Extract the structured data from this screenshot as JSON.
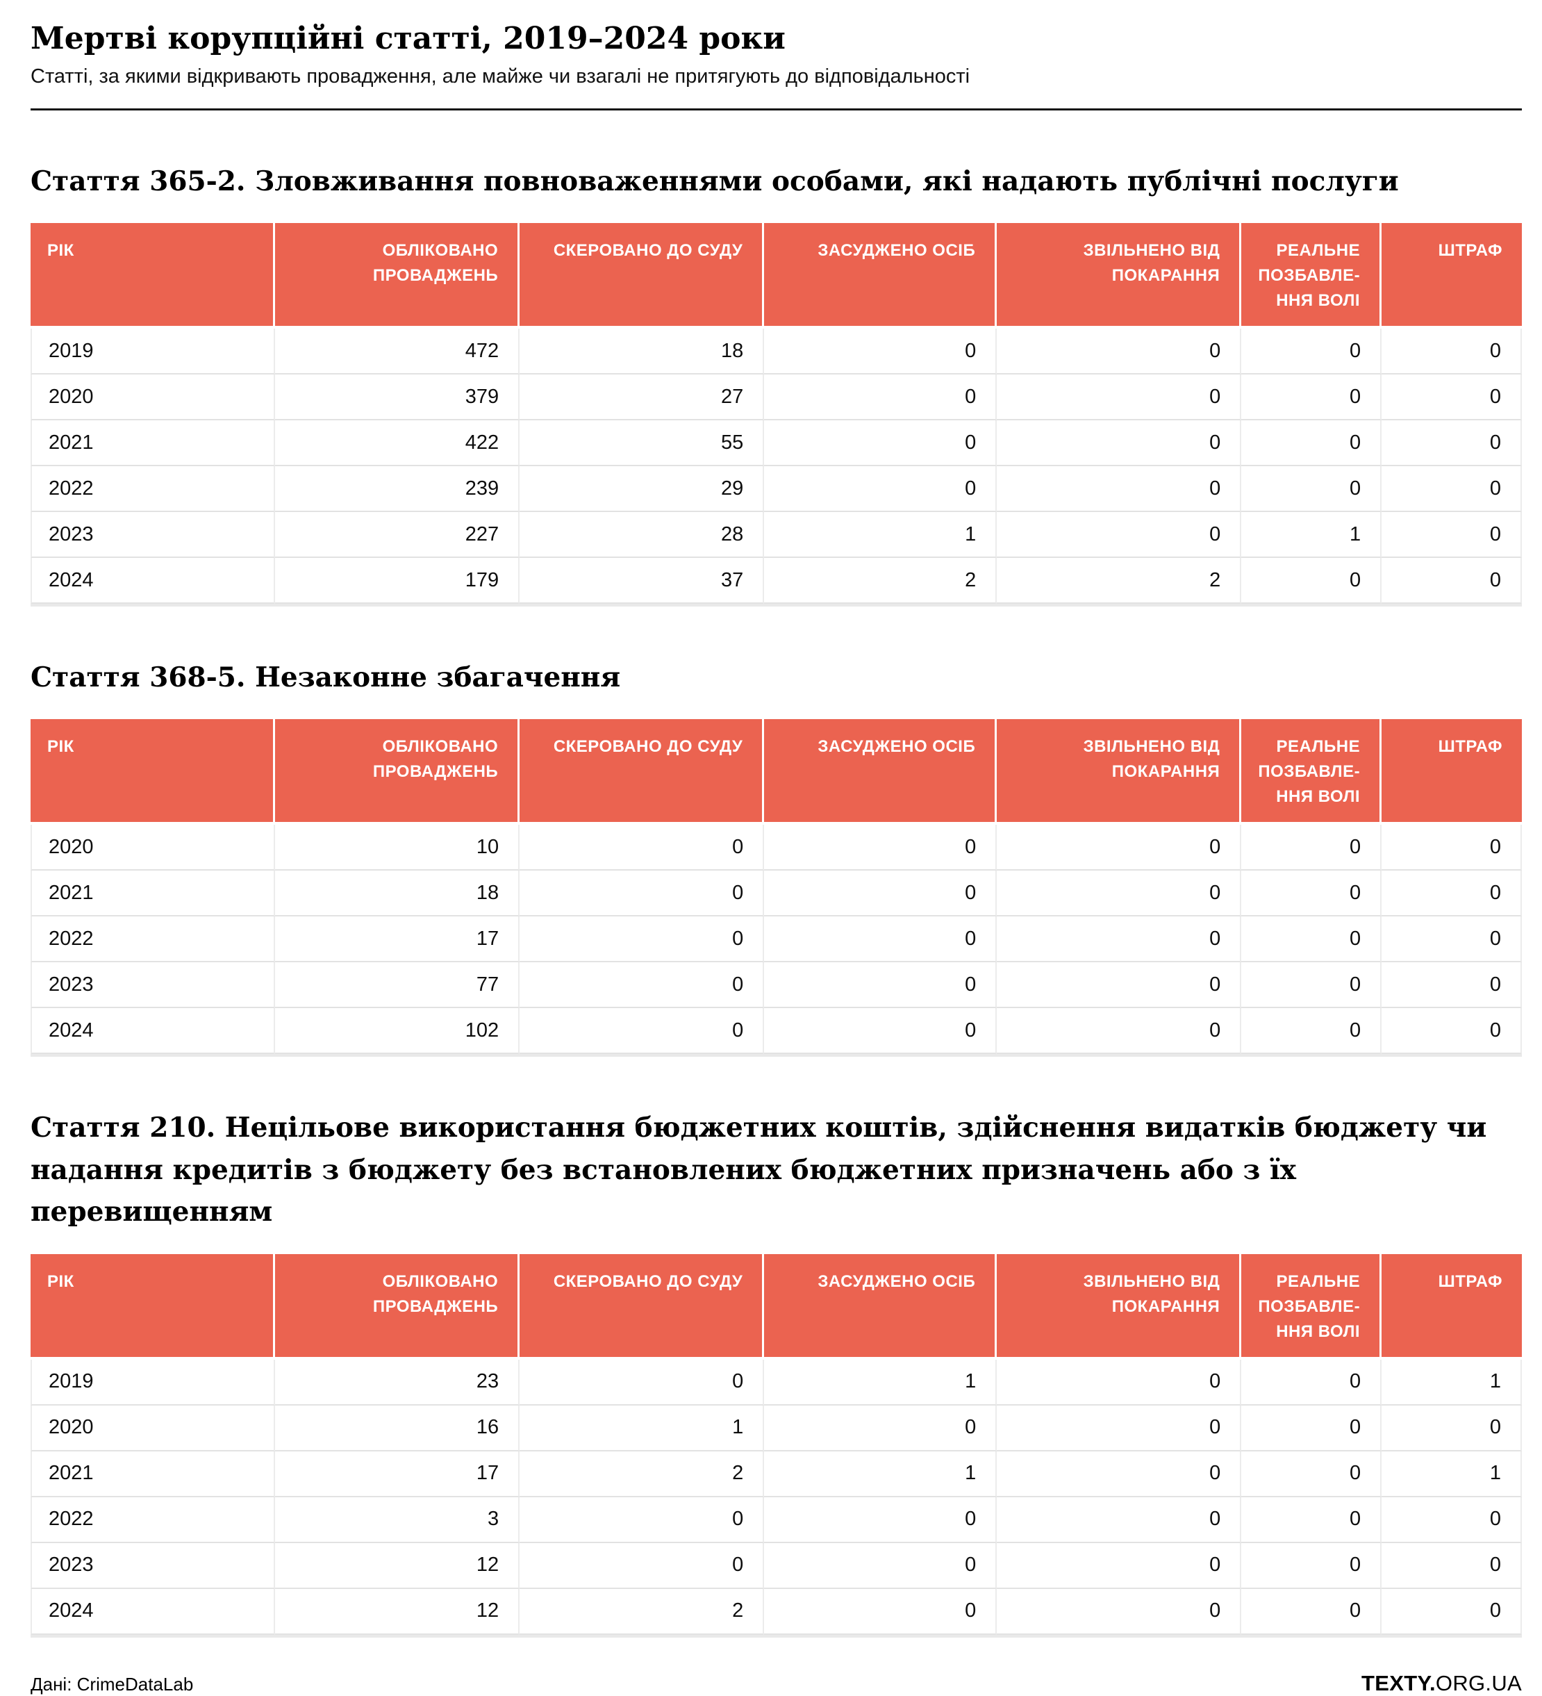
{
  "header": {
    "title": "Мертві корупційні статті, 2019–2024 роки",
    "subtitle": "Статті, за якими відкривають провадження, але майже чи взагалі не притягують до відповідальності"
  },
  "table_columns_display": [
    "РІК",
    "ОБЛІКОВАНО\nПРОВАДЖЕНЬ",
    "СКЕРОВАНО ДО СУДУ",
    "ЗАСУДЖЕНО ОСІБ",
    "ЗВІЛЬНЕНО ВІД\nПОКАРАННЯ",
    "РЕАЛЬНЕ\nПОЗБАВЛЕ-\nННЯ ВОЛІ",
    "ШТРАФ"
  ],
  "chart_data": [
    {
      "type": "table",
      "title": "Стаття 365-2. Зловживання повноваженнями особами, які надають публічні послуги",
      "columns": [
        "Рік",
        "Обліковано проваджень",
        "Скеровано до суду",
        "Засуджено осіб",
        "Звільнено від покарання",
        "Реальне позбавлення волі",
        "Штраф"
      ],
      "rows": [
        [
          2019,
          472,
          18,
          0,
          0,
          0,
          0
        ],
        [
          2020,
          379,
          27,
          0,
          0,
          0,
          0
        ],
        [
          2021,
          422,
          55,
          0,
          0,
          0,
          0
        ],
        [
          2022,
          239,
          29,
          0,
          0,
          0,
          0
        ],
        [
          2023,
          227,
          28,
          1,
          0,
          1,
          0
        ],
        [
          2024,
          179,
          37,
          2,
          2,
          0,
          0
        ]
      ]
    },
    {
      "type": "table",
      "title": "Стаття 368-5. Незаконне збагачення",
      "columns": [
        "Рік",
        "Обліковано проваджень",
        "Скеровано до суду",
        "Засуджено осіб",
        "Звільнено від покарання",
        "Реальне позбавлення волі",
        "Штраф"
      ],
      "rows": [
        [
          2020,
          10,
          0,
          0,
          0,
          0,
          0
        ],
        [
          2021,
          18,
          0,
          0,
          0,
          0,
          0
        ],
        [
          2022,
          17,
          0,
          0,
          0,
          0,
          0
        ],
        [
          2023,
          77,
          0,
          0,
          0,
          0,
          0
        ],
        [
          2024,
          102,
          0,
          0,
          0,
          0,
          0
        ]
      ]
    },
    {
      "type": "table",
      "title": "Стаття 210. Нецільове використання бюджетних коштів, здійснення видатків бюджету чи надання кредитів з бюджету без встановлених бюджетних призначень або з їх перевищенням",
      "columns": [
        "Рік",
        "Обліковано проваджень",
        "Скеровано до суду",
        "Засуджено осіб",
        "Звільнено від покарання",
        "Реальне позбавлення волі",
        "Штраф"
      ],
      "rows": [
        [
          2019,
          23,
          0,
          1,
          0,
          0,
          1
        ],
        [
          2020,
          16,
          1,
          0,
          0,
          0,
          0
        ],
        [
          2021,
          17,
          2,
          1,
          0,
          0,
          1
        ],
        [
          2022,
          3,
          0,
          0,
          0,
          0,
          0
        ],
        [
          2023,
          12,
          0,
          0,
          0,
          0,
          0
        ],
        [
          2024,
          12,
          2,
          0,
          0,
          0,
          0
        ]
      ]
    }
  ],
  "footer": {
    "source": "Дані: CrimeDataLab",
    "logo_bold": "TEXTY.",
    "logo_light": "ORG.UA"
  },
  "colors": {
    "accent": "#EB6350",
    "header_text": "#FFFFFF",
    "grid_line": "#E2E2E2",
    "divider": "#141414"
  }
}
